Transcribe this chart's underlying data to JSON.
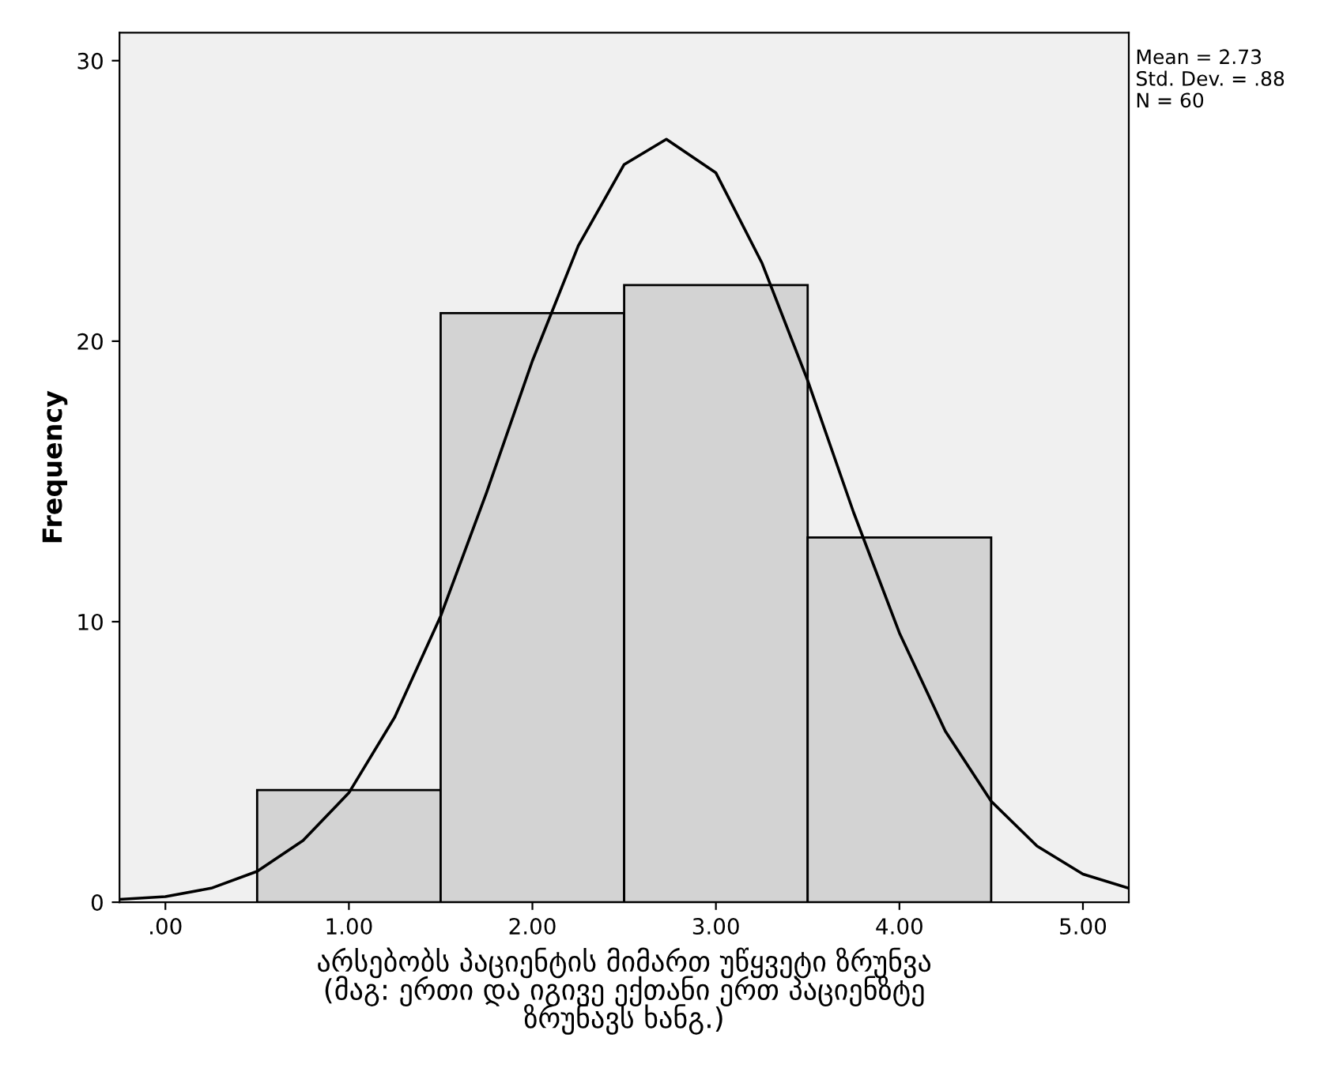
{
  "chart_data": {
    "type": "histogram",
    "xlabel": "არსებობს პაციენტის მიმართ უწყვეტი ზრუნვა\n(მაგ: ერთი და იგივე ექთანი ერთ პაციენზტე\nზრუნავს ხანგ.)",
    "ylabel": "Frequency",
    "bins": [
      0.5,
      1.5,
      2.5,
      3.5,
      4.5
    ],
    "values": [
      4,
      21,
      22,
      13
    ],
    "color": "#d3d3d3",
    "series": [
      {
        "type": "line",
        "color": "#000000",
        "x": [
          -0.25,
          0,
          0.25,
          0.5,
          0.75,
          1,
          1.25,
          1.5,
          1.75,
          2,
          2.25,
          2.5,
          2.73,
          3,
          3.25,
          3.5,
          3.75,
          4,
          4.25,
          4.5,
          4.75,
          5,
          5.25
        ],
        "values": [
          0.1,
          0.2,
          0.5,
          1.1,
          2.2,
          3.9,
          6.6,
          10.2,
          14.6,
          19.3,
          23.4,
          26.3,
          27.2,
          26.0,
          22.8,
          18.6,
          13.9,
          9.6,
          6.1,
          3.6,
          2.0,
          1.0,
          0.5
        ]
      }
    ],
    "xlim": [
      -0.25,
      5.25
    ],
    "ylim": [
      0,
      31
    ],
    "xticks": [
      {
        "value": 0,
        "label": ".00"
      },
      {
        "value": 1,
        "label": "1.00"
      },
      {
        "value": 2,
        "label": "2.00"
      },
      {
        "value": 3,
        "label": "3.00"
      },
      {
        "value": 4,
        "label": "4.00"
      },
      {
        "value": 5,
        "label": "5.00"
      }
    ],
    "yticks": [
      0,
      10,
      20,
      30
    ],
    "grid": false,
    "legend": false,
    "annotations": [
      "Mean = 2.73",
      "Std. Dev. = .88",
      "N = 60"
    ]
  }
}
